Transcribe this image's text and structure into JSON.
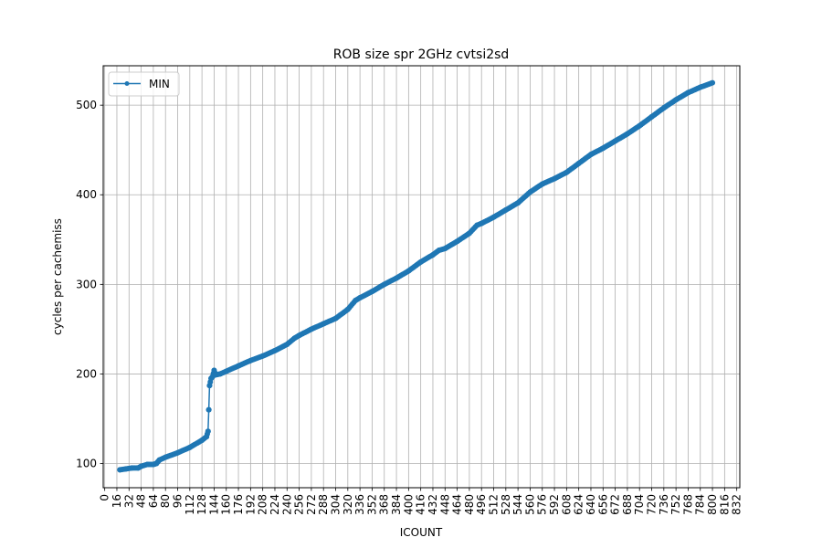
{
  "chart_data": {
    "type": "line",
    "title": "ROB size spr 2GHz cvtsi2sd",
    "xlabel": "ICOUNT",
    "ylabel": "cycles per cachemiss",
    "xlim": [
      -2,
      836
    ],
    "ylim": [
      73,
      544
    ],
    "grid": true,
    "legend_position": "upper left",
    "x_ticks": [
      0,
      16,
      32,
      48,
      64,
      80,
      96,
      112,
      128,
      144,
      160,
      176,
      192,
      208,
      224,
      240,
      256,
      272,
      288,
      304,
      320,
      336,
      352,
      368,
      384,
      400,
      416,
      432,
      448,
      464,
      480,
      496,
      512,
      528,
      544,
      560,
      576,
      592,
      608,
      624,
      640,
      656,
      672,
      688,
      704,
      720,
      736,
      752,
      768,
      784,
      800,
      816,
      832
    ],
    "y_ticks": [
      100,
      200,
      300,
      400,
      500
    ],
    "series_color": "#1f77b4",
    "series": [
      {
        "name": "MIN",
        "x": [
          20,
          28,
          36,
          44,
          48,
          56,
          64,
          68,
          72,
          80,
          96,
          112,
          128,
          134,
          136,
          137,
          138,
          140,
          142,
          144,
          146,
          152,
          160,
          176,
          192,
          208,
          224,
          240,
          250,
          256,
          272,
          288,
          304,
          320,
          330,
          336,
          352,
          368,
          384,
          400,
          416,
          432,
          440,
          448,
          464,
          480,
          490,
          496,
          512,
          528,
          544,
          560,
          576,
          592,
          608,
          624,
          640,
          656,
          672,
          688,
          704,
          720,
          736,
          752,
          768,
          784,
          800
        ],
        "y": [
          93,
          94,
          95,
          95,
          97,
          99,
          99,
          100,
          104,
          107,
          112,
          118,
          126,
          130,
          136,
          160,
          187,
          195,
          197,
          204,
          199,
          200,
          203,
          209,
          215,
          220,
          226,
          233,
          240,
          243,
          250,
          256,
          262,
          272,
          282,
          285,
          292,
          300,
          307,
          315,
          325,
          333,
          338,
          340,
          348,
          357,
          366,
          368,
          375,
          383,
          391,
          403,
          412,
          418,
          425,
          435,
          445,
          452,
          460,
          468,
          477,
          487,
          497,
          506,
          514,
          520,
          525
        ]
      }
    ]
  }
}
